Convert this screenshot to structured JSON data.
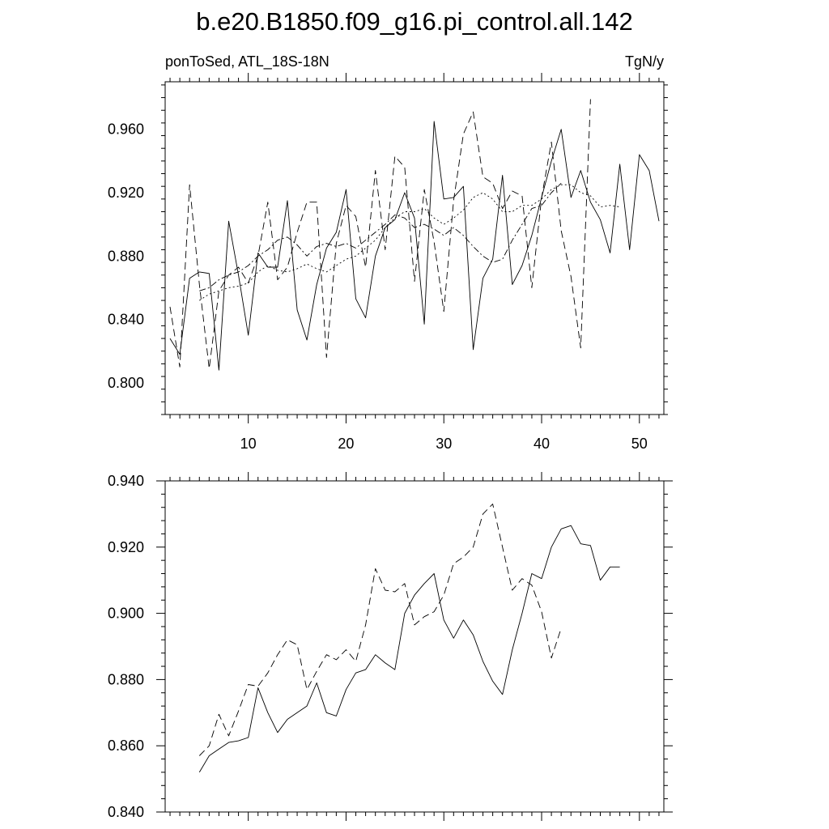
{
  "figure": {
    "title": "b.e20.B1850.f09_g16.pi_control.all.142",
    "left_label": "ponToSed, ATL_18S-18N",
    "right_label": "TgN/y"
  },
  "chart_data": [
    {
      "type": "line",
      "xlim": [
        1.5,
        52.5
      ],
      "ylim": [
        0.78,
        0.99
      ],
      "x_ticks": [
        10,
        20,
        30,
        40,
        50
      ],
      "x_tick_labels": [
        "10",
        "20",
        "30",
        "40",
        "50"
      ],
      "y_ticks": [
        0.8,
        0.84,
        0.88,
        0.92,
        0.96
      ],
      "y_tick_labels": [
        "0.800",
        "0.840",
        "0.880",
        "0.920",
        "0.960"
      ],
      "grid": false,
      "series": [
        {
          "style": "solid",
          "x": [
            2,
            3,
            4,
            5,
            6,
            7,
            8,
            9,
            10,
            11,
            12,
            13,
            14,
            15,
            16,
            17,
            18,
            19,
            20,
            21,
            22,
            23,
            24,
            25,
            26,
            27,
            28,
            29,
            30,
            31,
            32,
            33,
            34,
            35,
            36,
            37,
            38,
            39,
            40,
            41,
            42,
            43,
            44,
            45,
            46,
            47,
            48,
            49,
            50,
            51,
            52
          ],
          "values": [
            0.828,
            0.818,
            0.866,
            0.87,
            0.869,
            0.808,
            0.902,
            0.868,
            0.83,
            0.882,
            0.873,
            0.873,
            0.915,
            0.846,
            0.827,
            0.862,
            0.885,
            0.895,
            0.922,
            0.853,
            0.841,
            0.88,
            0.898,
            0.903,
            0.92,
            0.904,
            0.837,
            0.965,
            0.916,
            0.917,
            0.924,
            0.821,
            0.866,
            0.878,
            0.931,
            0.862,
            0.874,
            0.893,
            0.917,
            0.94,
            0.96,
            0.917,
            0.934,
            0.914,
            0.903,
            0.882,
            0.938,
            0.884,
            0.944,
            0.934,
            0.902
          ]
        },
        {
          "style": "dashed",
          "x": [
            2,
            3,
            4,
            5,
            6,
            7,
            8,
            9,
            10,
            11,
            12,
            13,
            14,
            15,
            16,
            17,
            18,
            19,
            20,
            21,
            22,
            23,
            24,
            25,
            26,
            27,
            28,
            29,
            30,
            31,
            32,
            33,
            34,
            35,
            36,
            37,
            38,
            39,
            40,
            41,
            42,
            43,
            44,
            45
          ],
          "values": [
            0.848,
            0.81,
            0.925,
            0.862,
            0.809,
            0.858,
            0.868,
            0.873,
            0.863,
            0.88,
            0.914,
            0.865,
            0.873,
            0.895,
            0.914,
            0.914,
            0.816,
            0.888,
            0.912,
            0.905,
            0.873,
            0.934,
            0.884,
            0.943,
            0.936,
            0.864,
            0.922,
            0.889,
            0.845,
            0.915,
            0.957,
            0.971,
            0.93,
            0.926,
            0.91,
            0.921,
            0.918,
            0.86,
            0.917,
            0.952,
            0.896,
            0.867,
            0.822,
            0.979
          ]
        },
        {
          "style": "dotted",
          "x": [
            5,
            6,
            7,
            8,
            9,
            10,
            11,
            12,
            13,
            14,
            15,
            16,
            17,
            18,
            19,
            20,
            21,
            22,
            23,
            24,
            25,
            26,
            27,
            28,
            29,
            30,
            31,
            32,
            33,
            34,
            35,
            36,
            37,
            38,
            39,
            40,
            41,
            42,
            43,
            44,
            45,
            46,
            47,
            48
          ],
          "values": [
            0.852,
            0.856,
            0.858,
            0.86,
            0.861,
            0.863,
            0.87,
            0.874,
            0.871,
            0.87,
            0.872,
            0.875,
            0.872,
            0.87,
            0.874,
            0.878,
            0.88,
            0.885,
            0.89,
            0.898,
            0.904,
            0.908,
            0.908,
            0.91,
            0.904,
            0.9,
            0.904,
            0.909,
            0.917,
            0.92,
            0.916,
            0.908,
            0.908,
            0.912,
            0.912,
            0.916,
            0.922,
            0.925,
            0.925,
            0.92,
            0.918,
            0.911,
            0.912,
            0.911
          ]
        },
        {
          "style": "dash-dot",
          "x": [
            5,
            6,
            7,
            8,
            9,
            10,
            11,
            12,
            13,
            14,
            15,
            16,
            17,
            18,
            19,
            20,
            21,
            22,
            23,
            24,
            25,
            26,
            27,
            28,
            29,
            30,
            31,
            32,
            33,
            34,
            35,
            36,
            37,
            38,
            39,
            40,
            41,
            42
          ],
          "values": [
            0.858,
            0.86,
            0.865,
            0.868,
            0.87,
            0.874,
            0.88,
            0.884,
            0.89,
            0.892,
            0.887,
            0.88,
            0.886,
            0.888,
            0.886,
            0.888,
            0.885,
            0.89,
            0.895,
            0.9,
            0.906,
            0.904,
            0.898,
            0.9,
            0.897,
            0.893,
            0.898,
            0.893,
            0.886,
            0.88,
            0.876,
            0.878,
            0.89,
            0.9,
            0.91,
            0.912,
            0.92,
            0.926
          ]
        }
      ]
    },
    {
      "type": "line",
      "xlim": [
        1.5,
        52.5
      ],
      "ylim": [
        0.84,
        0.94
      ],
      "y_ticks": [
        0.84,
        0.86,
        0.88,
        0.9,
        0.92,
        0.94
      ],
      "y_tick_labels": [
        "0.840",
        "0.860",
        "0.880",
        "0.900",
        "0.920",
        "0.940"
      ],
      "x_ticks": [
        10,
        20,
        30,
        40,
        50
      ],
      "grid": false,
      "series": [
        {
          "style": "solid",
          "x": [
            5,
            6,
            7,
            8,
            9,
            10,
            11,
            12,
            13,
            14,
            15,
            16,
            17,
            18,
            19,
            20,
            21,
            22,
            23,
            24,
            25,
            26,
            27,
            28,
            29,
            30,
            31,
            32,
            33,
            34,
            35,
            36,
            37,
            38,
            39,
            40,
            41,
            42,
            43,
            44,
            45,
            46,
            47,
            48
          ],
          "values": [
            0.852,
            0.857,
            0.859,
            0.861,
            0.8615,
            0.8625,
            0.8775,
            0.87,
            0.864,
            0.868,
            0.87,
            0.872,
            0.879,
            0.87,
            0.869,
            0.877,
            0.882,
            0.883,
            0.8875,
            0.885,
            0.883,
            0.9,
            0.9055,
            0.909,
            0.912,
            0.898,
            0.8925,
            0.898,
            0.8935,
            0.8855,
            0.8795,
            0.8755,
            0.889,
            0.9,
            0.912,
            0.9105,
            0.92,
            0.9255,
            0.9265,
            0.921,
            0.9205,
            0.91,
            0.914,
            0.914
          ]
        },
        {
          "style": "dashed",
          "x": [
            5,
            6,
            7,
            8,
            9,
            10,
            11,
            12,
            13,
            14,
            15,
            16,
            17,
            18,
            19,
            20,
            21,
            22,
            23,
            24,
            25,
            26,
            27,
            28,
            29,
            30,
            31,
            32,
            33,
            34,
            35,
            36,
            37,
            38,
            39,
            40,
            41,
            42
          ],
          "values": [
            0.857,
            0.86,
            0.8695,
            0.863,
            0.8705,
            0.8785,
            0.878,
            0.882,
            0.8875,
            0.892,
            0.8905,
            0.877,
            0.8825,
            0.8875,
            0.886,
            0.889,
            0.8855,
            0.8965,
            0.9135,
            0.907,
            0.9065,
            0.909,
            0.8965,
            0.899,
            0.9005,
            0.9055,
            0.915,
            0.917,
            0.92,
            0.93,
            0.933,
            0.92,
            0.907,
            0.9105,
            0.9085,
            0.9005,
            0.8865,
            0.8955
          ]
        }
      ]
    }
  ]
}
